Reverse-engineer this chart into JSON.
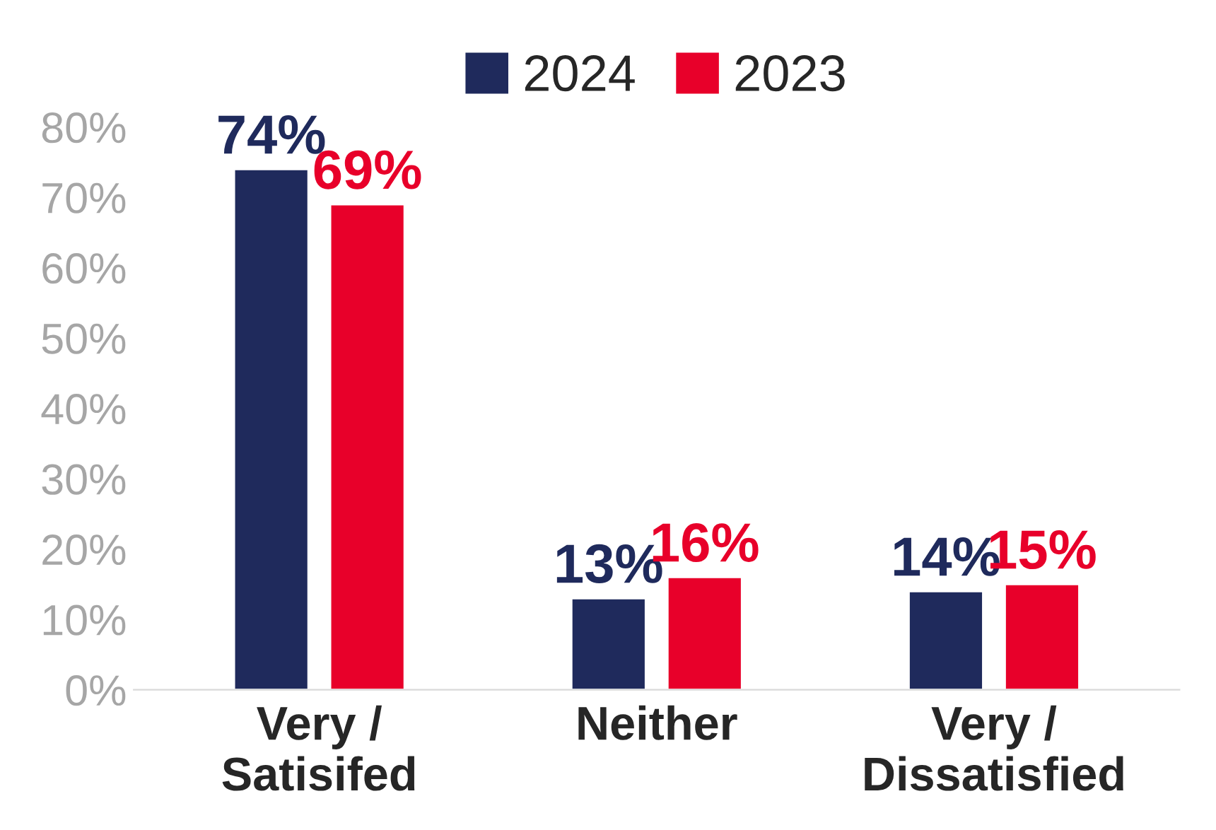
{
  "chart_data": {
    "type": "bar",
    "categories": [
      "Very /\nSatisifed",
      "Neither",
      "Very /\nDissatisfied"
    ],
    "series": [
      {
        "name": "2024",
        "color": "#1f2a5c",
        "values": [
          74,
          13,
          14
        ],
        "value_labels": [
          "74%",
          "13%",
          "14%"
        ]
      },
      {
        "name": "2023",
        "color": "#e8002a",
        "values": [
          69,
          16,
          15
        ],
        "value_labels": [
          "69%",
          "16%",
          "15%"
        ]
      }
    ],
    "ylim": [
      0,
      80
    ],
    "yticks": [
      {
        "value": 0,
        "label": "0%"
      },
      {
        "value": 10,
        "label": "10%"
      },
      {
        "value": 20,
        "label": "20%"
      },
      {
        "value": 30,
        "label": "30%"
      },
      {
        "value": 40,
        "label": "40%"
      },
      {
        "value": 50,
        "label": "50%"
      },
      {
        "value": 60,
        "label": "60%"
      },
      {
        "value": 70,
        "label": "70%"
      },
      {
        "value": 80,
        "label": "80%"
      }
    ],
    "grid": false,
    "legend": "top"
  }
}
